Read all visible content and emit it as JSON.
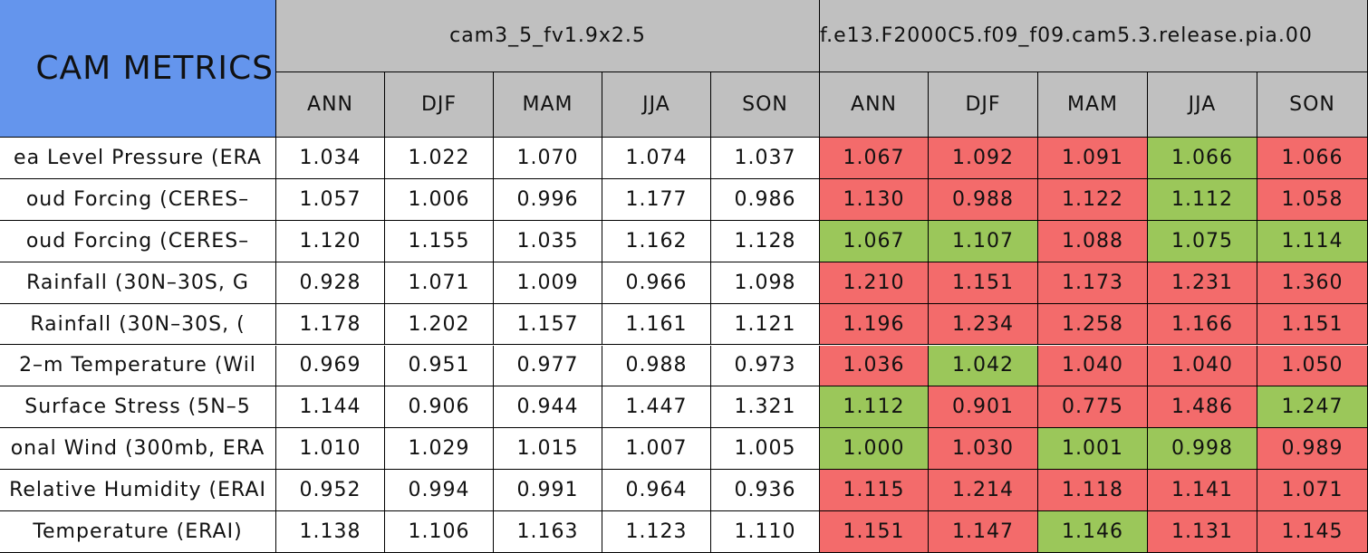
{
  "header": {
    "corner": "CAM METRICS",
    "groups": [
      "cam3_5_fv1.9x2.5",
      "f.e13.F2000C5.f09_f09.cam5.3.release.pia.00"
    ],
    "seasons": [
      "ANN",
      "DJF",
      "MAM",
      "JJA",
      "SON",
      "ANN",
      "DJF",
      "MAM",
      "JJA",
      "SON"
    ]
  },
  "colors": {
    "plain": "#ffffff",
    "header": "#c0c0c0",
    "corner": "#6495ed",
    "worse": "#f36b6b",
    "better": "#9bc75a"
  },
  "table": {
    "rows": [
      {
        "label": "ea Level Pressure (ERA",
        "values": [
          "1.034",
          "1.022",
          "1.070",
          "1.074",
          "1.037",
          "1.067",
          "1.092",
          "1.091",
          "1.066",
          "1.066"
        ],
        "shades": [
          "plain",
          "plain",
          "plain",
          "plain",
          "plain",
          "worse",
          "worse",
          "worse",
          "better",
          "worse"
        ]
      },
      {
        "label": "oud Forcing (CERES–",
        "values": [
          "1.057",
          "1.006",
          "0.996",
          "1.177",
          "0.986",
          "1.130",
          "0.988",
          "1.122",
          "1.112",
          "1.058"
        ],
        "shades": [
          "plain",
          "plain",
          "plain",
          "plain",
          "plain",
          "worse",
          "worse",
          "worse",
          "better",
          "worse"
        ]
      },
      {
        "label": "oud Forcing (CERES–",
        "values": [
          "1.120",
          "1.155",
          "1.035",
          "1.162",
          "1.128",
          "1.067",
          "1.107",
          "1.088",
          "1.075",
          "1.114"
        ],
        "shades": [
          "plain",
          "plain",
          "plain",
          "plain",
          "plain",
          "better",
          "better",
          "worse",
          "better",
          "better"
        ]
      },
      {
        "label": "Rainfall (30N–30S, G",
        "values": [
          "0.928",
          "1.071",
          "1.009",
          "0.966",
          "1.098",
          "1.210",
          "1.151",
          "1.173",
          "1.231",
          "1.360"
        ],
        "shades": [
          "plain",
          "plain",
          "plain",
          "plain",
          "plain",
          "worse",
          "worse",
          "worse",
          "worse",
          "worse"
        ]
      },
      {
        "label": "Rainfall (30N–30S, (",
        "values": [
          "1.178",
          "1.202",
          "1.157",
          "1.161",
          "1.121",
          "1.196",
          "1.234",
          "1.258",
          "1.166",
          "1.151"
        ],
        "shades": [
          "plain",
          "plain",
          "plain",
          "plain",
          "plain",
          "worse",
          "worse",
          "worse",
          "worse",
          "worse"
        ]
      },
      {
        "label": "2–m Temperature (Wil",
        "values": [
          "0.969",
          "0.951",
          "0.977",
          "0.988",
          "0.973",
          "1.036",
          "1.042",
          "1.040",
          "1.040",
          "1.050"
        ],
        "shades": [
          "plain",
          "plain",
          "plain",
          "plain",
          "plain",
          "worse",
          "better",
          "worse",
          "worse",
          "worse"
        ]
      },
      {
        "label": "Surface Stress (5N–5",
        "values": [
          "1.144",
          "0.906",
          "0.944",
          "1.447",
          "1.321",
          "1.112",
          "0.901",
          "0.775",
          "1.486",
          "1.247"
        ],
        "shades": [
          "plain",
          "plain",
          "plain",
          "plain",
          "plain",
          "better",
          "worse",
          "worse",
          "worse",
          "better"
        ]
      },
      {
        "label": "onal Wind (300mb, ERA",
        "values": [
          "1.010",
          "1.029",
          "1.015",
          "1.007",
          "1.005",
          "1.000",
          "1.030",
          "1.001",
          "0.998",
          "0.989"
        ],
        "shades": [
          "plain",
          "plain",
          "plain",
          "plain",
          "plain",
          "better",
          "worse",
          "better",
          "better",
          "worse"
        ]
      },
      {
        "label": "Relative Humidity (ERAI",
        "values": [
          "0.952",
          "0.994",
          "0.991",
          "0.964",
          "0.936",
          "1.115",
          "1.214",
          "1.118",
          "1.141",
          "1.071"
        ],
        "shades": [
          "plain",
          "plain",
          "plain",
          "plain",
          "plain",
          "worse",
          "worse",
          "worse",
          "worse",
          "worse"
        ]
      },
      {
        "label": "Temperature (ERAI)",
        "values": [
          "1.138",
          "1.106",
          "1.163",
          "1.123",
          "1.110",
          "1.151",
          "1.147",
          "1.146",
          "1.131",
          "1.145"
        ],
        "shades": [
          "plain",
          "plain",
          "plain",
          "plain",
          "plain",
          "worse",
          "worse",
          "better",
          "worse",
          "worse"
        ]
      }
    ]
  }
}
